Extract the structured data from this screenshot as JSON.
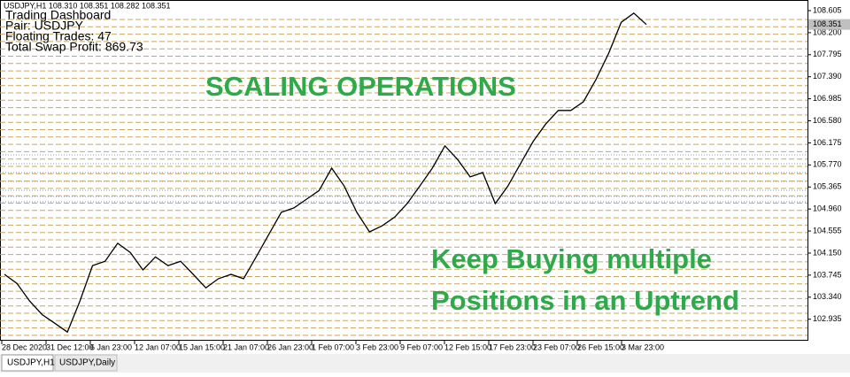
{
  "chart_header": "USDJPY,H1  108.310 108.351 108.282 108.351",
  "dashboard": {
    "title": "Trading Dashboard",
    "pair": "Pair: USDJPY",
    "floating": "Floating Trades: 47",
    "swap": "Total Swap Profit: 869.73"
  },
  "annotations": [
    "SCALING OPERATIONS",
    "Keep Buying multiple",
    "Positions in an Uptrend"
  ],
  "price_axis": {
    "ylim": [
      102.54,
      108.8
    ],
    "yticks": [
      108.605,
      {
        "value": 108.2,
        "label": "108.200"
      },
      107.795,
      {
        "value": 107.39,
        "label": "107.390"
      },
      106.985,
      {
        "value": 106.58,
        "label": "106.580"
      },
      106.175,
      {
        "value": 105.77,
        "label": "105.770"
      },
      105.365,
      {
        "value": 104.96,
        "label": "104.960"
      },
      104.555,
      {
        "value": 104.15,
        "label": "104.150"
      },
      103.745,
      {
        "value": 103.34,
        "label": "103.340"
      },
      102.935
    ],
    "current_price": 108.351
  },
  "time_axis": [
    "28 Dec 2020",
    "31 Dec 12:00",
    "6 Jan 23:00",
    "12 Jan 07:00",
    "15 Jan 15:00",
    "21 Jan 07:00",
    "26 Jan 23:00",
    "1 Feb 07:00",
    "3 Feb 23:00",
    "9 Feb 07:00",
    "12 Feb 15:00",
    "17 Feb 23:00",
    "23 Feb 07:00",
    "26 Feb 15:00",
    "3 Mar 23:00"
  ],
  "price": [
    103.76,
    103.59,
    103.27,
    103.02,
    102.86,
    102.7,
    103.27,
    103.92,
    104.0,
    104.33,
    104.16,
    103.84,
    104.08,
    103.92,
    104.0,
    103.76,
    103.51,
    103.68,
    103.76,
    103.68,
    104.08,
    104.49,
    104.9,
    104.98,
    105.14,
    105.3,
    105.71,
    105.38,
    104.9,
    104.54,
    104.65,
    104.81,
    105.06,
    105.38,
    105.71,
    106.12,
    105.87,
    105.55,
    105.63,
    105.06,
    105.38,
    105.79,
    106.2,
    106.52,
    106.77,
    106.77,
    106.93,
    107.34,
    107.82,
    108.39,
    108.56,
    108.35
  ],
  "tabs": [
    "USDJPY,H1",
    "USDJPY,Daily"
  ]
}
